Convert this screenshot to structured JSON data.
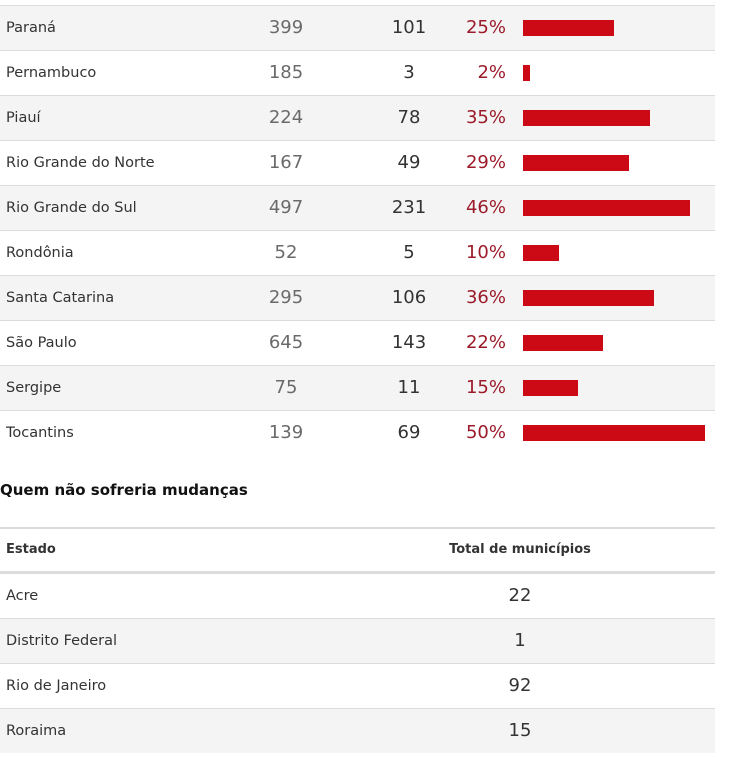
{
  "colors": {
    "bar": "#cc0a15",
    "percent_text": "#9b1b2a",
    "row_shade": "#f4f4f4"
  },
  "table1": {
    "rows": [
      {
        "state": "Paraná",
        "total": "399",
        "changed": "101",
        "percent": "25%",
        "pct_value": 25
      },
      {
        "state": "Pernambuco",
        "total": "185",
        "changed": "3",
        "percent": "2%",
        "pct_value": 2
      },
      {
        "state": "Piauí",
        "total": "224",
        "changed": "78",
        "percent": "35%",
        "pct_value": 35
      },
      {
        "state": "Rio Grande do Norte",
        "total": "167",
        "changed": "49",
        "percent": "29%",
        "pct_value": 29
      },
      {
        "state": "Rio Grande do Sul",
        "total": "497",
        "changed": "231",
        "percent": "46%",
        "pct_value": 46
      },
      {
        "state": "Rondônia",
        "total": "52",
        "changed": "5",
        "percent": "10%",
        "pct_value": 10
      },
      {
        "state": "Santa Catarina",
        "total": "295",
        "changed": "106",
        "percent": "36%",
        "pct_value": 36
      },
      {
        "state": "São Paulo",
        "total": "645",
        "changed": "143",
        "percent": "22%",
        "pct_value": 22
      },
      {
        "state": "Sergipe",
        "total": "75",
        "changed": "11",
        "percent": "15%",
        "pct_value": 15
      },
      {
        "state": "Tocantins",
        "total": "139",
        "changed": "69",
        "percent": "50%",
        "pct_value": 50
      }
    ]
  },
  "section2": {
    "title": "Quem não sofreria mudanças",
    "headers": {
      "state": "Estado",
      "total": "Total de municípios"
    },
    "rows": [
      {
        "state": "Acre",
        "total": "22"
      },
      {
        "state": "Distrito Federal",
        "total": "1"
      },
      {
        "state": "Rio de Janeiro",
        "total": "92"
      },
      {
        "state": "Roraima",
        "total": "15"
      }
    ]
  }
}
